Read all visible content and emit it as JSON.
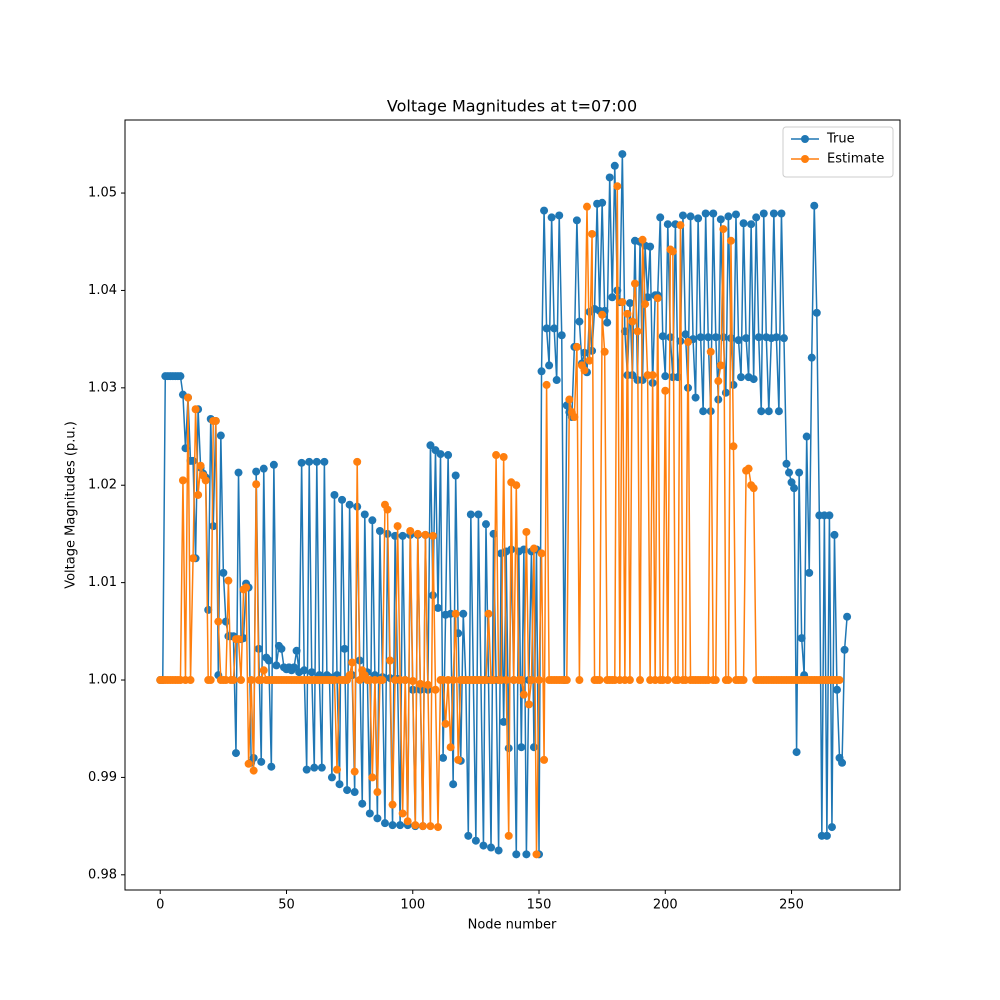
{
  "chart_data": {
    "type": "line",
    "title": "Voltage Magnitudes at t=07:00",
    "xlabel": "Node number",
    "ylabel": "Voltage Magnitudes (p.u.)",
    "xlim": [
      -13.95,
      292.95
    ],
    "xticks": [
      0,
      50,
      100,
      150,
      200,
      250
    ],
    "ylim": [
      0.97844,
      1.0575
    ],
    "yticks": [
      0.98,
      0.99,
      {
        "value": 1,
        "label": "1.00"
      },
      1.01,
      1.02,
      1.03,
      1.04,
      1.05
    ],
    "legend": "upper right",
    "series": [
      {
        "name": "True",
        "color": "#1f77b4",
        "values": [
          1.0,
          1.0,
          1.0312,
          1.0312,
          1.0312,
          1.0312,
          1.0312,
          1.0312,
          1.0312,
          1.0293,
          1.0238,
          1.029,
          1.0225,
          1.0225,
          1.0125,
          1.0278,
          1.0218,
          1.0212,
          1.0208,
          1.0072,
          1.0268,
          1.0158,
          1.0266,
          1.0005,
          1.0251,
          1.011,
          1.006,
          1.0045,
          1.0045,
          1.0045,
          0.9925,
          1.0213,
          1.0042,
          1.0043,
          1.0099,
          1.0095,
          0.9915,
          0.992,
          1.0214,
          1.0032,
          0.9916,
          1.0217,
          1.0023,
          1.002,
          0.9911,
          1.0221,
          1.0015,
          1.0035,
          1.0032,
          1.0013,
          1.0011,
          1.0013,
          1.001,
          1.0013,
          1.003,
          1.0008,
          1.0223,
          1.001,
          0.9908,
          1.0224,
          1.0008,
          0.991,
          1.0224,
          1.0005,
          0.991,
          1.0224,
          1.0005,
          1.0003,
          0.99,
          1.019,
          1.0005,
          0.9893,
          1.0185,
          1.0032,
          0.9887,
          1.018,
          1.0005,
          0.9885,
          1.0178,
          1.002,
          0.9873,
          1.017,
          1.0008,
          0.9863,
          1.0164,
          1.0005,
          0.9858,
          1.0153,
          1.0003,
          0.9853,
          1.015,
          1.0002,
          0.9851,
          1.0148,
          1.0001,
          0.9851,
          1.0148,
          1.0,
          0.9851,
          1.0149,
          0.999,
          0.985,
          1.0149,
          0.999,
          0.985,
          1.0149,
          0.999,
          1.0241,
          1.0087,
          1.0236,
          1.0074,
          1.0232,
          0.992,
          1.0067,
          1.0231,
          1.0068,
          0.9893,
          1.021,
          1.0048,
          0.9917,
          1.0068,
          1.0,
          0.984,
          1.017,
          1.0,
          0.9835,
          1.017,
          1.0,
          0.983,
          1.016,
          1.0,
          0.9828,
          1.015,
          1.0,
          0.9825,
          1.013,
          0.9957,
          1.0132,
          0.993,
          1.0134,
          1.0,
          0.9821,
          1.0132,
          0.9931,
          1.0134,
          0.9821,
          1.0,
          1.0132,
          0.9931,
          1.0134,
          0.9821,
          1.0317,
          1.0482,
          1.0361,
          1.0323,
          1.0475,
          1.0361,
          1.0308,
          1.0477,
          1.0354,
          1.0,
          1.0282,
          1.0275,
          1.027,
          1.0342,
          1.0472,
          1.0368,
          1.0325,
          1.0336,
          1.0316,
          1.0378,
          1.0338,
          1.0381,
          1.0489,
          1.0379,
          1.049,
          1.0379,
          1.0367,
          1.0516,
          1.0393,
          1.0528,
          1.04,
          1.0388,
          1.054,
          1.0358,
          1.0313,
          1.0387,
          1.0313,
          1.0451,
          1.0308,
          1.045,
          1.0308,
          1.0446,
          1.0393,
          1.0445,
          1.0305,
          1.0395,
          1.0395,
          1.0475,
          1.0353,
          1.0312,
          1.0468,
          1.0352,
          1.0311,
          1.0468,
          1.0311,
          1.0348,
          1.0477,
          1.0355,
          1.03,
          1.0476,
          1.035,
          1.029,
          1.0474,
          1.0352,
          1.0276,
          1.0479,
          1.0352,
          1.0276,
          1.0479,
          1.0352,
          1.0288,
          1.0473,
          1.0352,
          1.0295,
          1.0476,
          1.0351,
          1.0303,
          1.0478,
          1.0349,
          1.0311,
          1.0469,
          1.0351,
          1.0311,
          1.0468,
          1.0309,
          1.0475,
          1.0352,
          1.0276,
          1.0479,
          1.0352,
          1.0276,
          1.0351,
          1.0479,
          1.0352,
          1.0276,
          1.0479,
          1.0351,
          1.0222,
          1.0213,
          1.0203,
          1.0197,
          0.9926,
          1.0213,
          1.0043,
          1.0005,
          1.025,
          1.011,
          1.0331,
          1.0487,
          1.0377,
          1.0169,
          0.984,
          1.0169,
          0.984,
          1.0169,
          0.9849,
          1.0149,
          0.999,
          0.992,
          0.9915,
          1.0031,
          1.0065
        ]
      },
      {
        "name": "Estimate",
        "color": "#ff7f0e",
        "values": [
          1.0,
          1.0,
          1.0,
          1.0,
          1.0,
          1.0,
          1.0,
          1.0,
          1.0,
          1.0205,
          1.0,
          1.029,
          1.0,
          1.0125,
          1.0278,
          1.019,
          1.022,
          1.021,
          1.0205,
          1.0,
          1.0,
          1.0266,
          1.0266,
          1.006,
          1.0,
          1.0,
          1.0,
          1.0102,
          1.0,
          1.0,
          1.0042,
          1.0042,
          1.0,
          1.0093,
          1.0095,
          0.9914,
          1.0,
          0.9907,
          1.0201,
          1.0,
          1.0,
          1.001,
          1.0,
          1.0,
          1.0,
          1.0,
          1.0,
          1.0,
          1.0,
          1.0,
          1.0,
          1.0,
          1.0,
          1.0,
          1.0,
          1.0,
          1.0,
          1.0,
          1.0,
          1.0,
          1.0,
          1.0,
          1.0,
          1.0,
          1.0,
          1.0,
          1.0,
          1.0,
          1.0,
          1.0,
          0.9908,
          1.0,
          1.0,
          1.0,
          1.0,
          1.0005,
          1.0018,
          0.9906,
          1.0224,
          1.0,
          1.001,
          1.0005,
          1.0,
          1.0,
          0.99,
          1.0,
          0.9885,
          1.0,
          1.0,
          1.018,
          1.0175,
          1.002,
          0.9872,
          1.0,
          1.0158,
          1.0,
          0.9863,
          1.0,
          0.9855,
          1.0153,
          0.9999,
          0.9851,
          1.015,
          0.9996,
          0.985,
          1.0149,
          0.9995,
          0.985,
          1.0148,
          0.999,
          0.9849,
          1.0,
          1.0,
          0.9955,
          1.0,
          0.9931,
          1.0,
          1.0068,
          0.9918,
          1.0,
          1.0,
          1.0,
          1.0,
          1.0,
          1.0,
          1.0,
          1.0,
          1.0,
          1.0,
          1.0,
          1.0068,
          1.0,
          1.0,
          1.0231,
          1.0,
          1.0,
          1.0229,
          1.0,
          0.984,
          1.0203,
          1.0,
          1.02,
          1.0,
          1.0,
          0.9985,
          1.0152,
          0.9975,
          1.0,
          1.0135,
          0.9821,
          1.0,
          1.013,
          0.9918,
          1.0303,
          1.0,
          1.0,
          1.0,
          1.0,
          1.0,
          1.0,
          1.0,
          1.0,
          1.0288,
          1.0275,
          1.027,
          1.0342,
          1.0,
          1.0323,
          1.0318,
          1.0486,
          1.0328,
          1.0458,
          1.0,
          1.0,
          1.0,
          1.0375,
          1.0337,
          1.0,
          1.0,
          1.0,
          1.0,
          1.0507,
          1.0,
          1.0388,
          1.0,
          1.0376,
          1.0,
          1.0368,
          1.0407,
          1.0358,
          1.0,
          1.0452,
          1.0386,
          1.0313,
          1.0,
          1.0313,
          1.0,
          1.0392,
          1.0,
          1.0,
          1.0297,
          1.0,
          1.0442,
          1.044,
          1.0,
          1.0,
          1.0467,
          1.0,
          1.0,
          1.0347,
          1.0,
          1.0,
          1.0,
          1.0,
          1.0,
          1.0,
          1.0,
          1.0,
          1.0337,
          1.0,
          1.0,
          1.0307,
          1.0323,
          1.0463,
          1.0,
          1.0,
          1.0451,
          1.024,
          1.0,
          1.0,
          1.0,
          1.0,
          1.0215,
          1.0217,
          1.02,
          1.0197,
          1.0,
          1.0,
          1.0,
          1.0,
          1.0,
          1.0,
          1.0,
          1.0,
          1.0,
          1.0,
          1.0,
          1.0,
          1.0,
          1.0,
          1.0,
          1.0,
          1.0,
          1.0,
          1.0,
          1.0,
          1.0,
          1.0,
          1.0,
          1.0,
          1.0,
          1.0,
          1.0,
          1.0,
          1.0,
          1.0,
          1.0,
          1.0,
          1.0,
          1.0
        ]
      }
    ]
  }
}
